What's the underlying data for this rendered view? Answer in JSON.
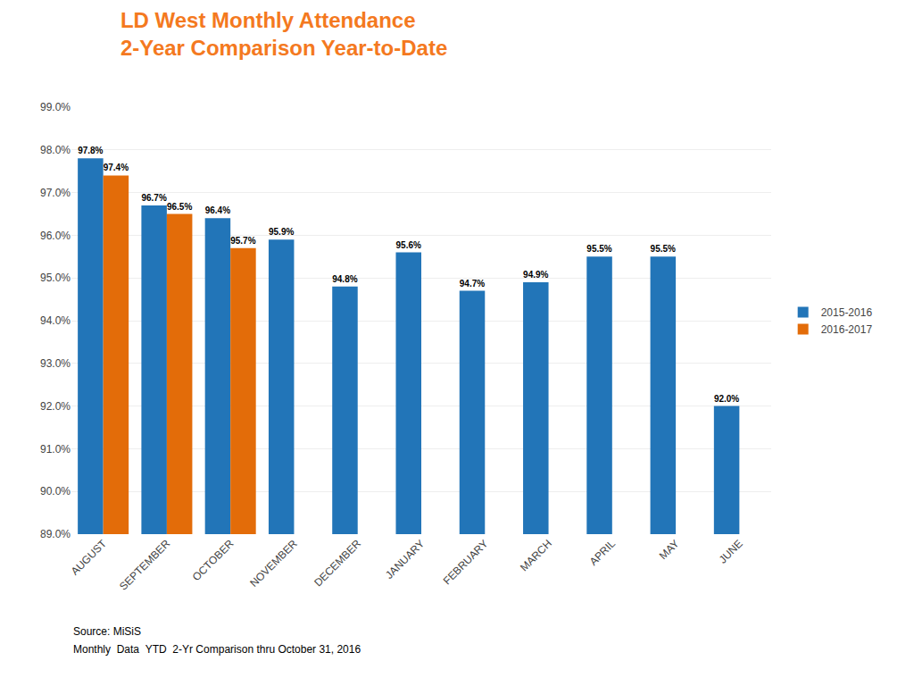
{
  "chart_data": {
    "type": "bar",
    "title": "LD West Monthly Attendance",
    "subtitle": "2-Year Comparison Year-to-Date",
    "categories": [
      "AUGUST",
      "SEPTEMBER",
      "OCTOBER",
      "NOVEMBER",
      "DECEMBER",
      "JANUARY",
      "FEBRUARY",
      "MARCH",
      "APRIL",
      "MAY",
      "JUNE"
    ],
    "series": [
      {
        "name": "2015-2016",
        "color": "#2275B8",
        "values": [
          97.8,
          96.7,
          96.4,
          95.9,
          94.8,
          95.6,
          94.7,
          94.9,
          95.5,
          95.5,
          92.0
        ],
        "value_labels": [
          "97.8%",
          "96.7%",
          "96.4%",
          "95.9%",
          "94.8%",
          "95.6%",
          "94.7%",
          "94.9%",
          "95.5%",
          "95.5%",
          "92.0%"
        ]
      },
      {
        "name": "2016-2017",
        "color": "#E36C09",
        "values": [
          97.4,
          96.5,
          95.7,
          null,
          null,
          null,
          null,
          null,
          null,
          null,
          null
        ],
        "value_labels": [
          "97.4%",
          "96.5%",
          "95.7%",
          null,
          null,
          null,
          null,
          null,
          null,
          null,
          null
        ]
      }
    ],
    "ylim": [
      89.0,
      99.0
    ],
    "yticks": [
      {
        "value": 89.0,
        "label": "89.0%"
      },
      {
        "value": 90.0,
        "label": "90.0%"
      },
      {
        "value": 91.0,
        "label": "91.0%"
      },
      {
        "value": 92.0,
        "label": "92.0%"
      },
      {
        "value": 93.0,
        "label": "93.0%"
      },
      {
        "value": 94.0,
        "label": "94.0%"
      },
      {
        "value": 95.0,
        "label": "95.0%"
      },
      {
        "value": 96.0,
        "label": "96.0%"
      },
      {
        "value": 97.0,
        "label": "97.0%"
      },
      {
        "value": 98.0,
        "label": "98.0%"
      },
      {
        "value": 99.0,
        "label": "99.0%"
      }
    ],
    "grid": true,
    "legend": "right",
    "data_labels": true,
    "annotations": [
      "Source: MiSiS",
      "Monthly  Data  YTD  2-Yr Comparison thru October 31, 2016"
    ]
  }
}
